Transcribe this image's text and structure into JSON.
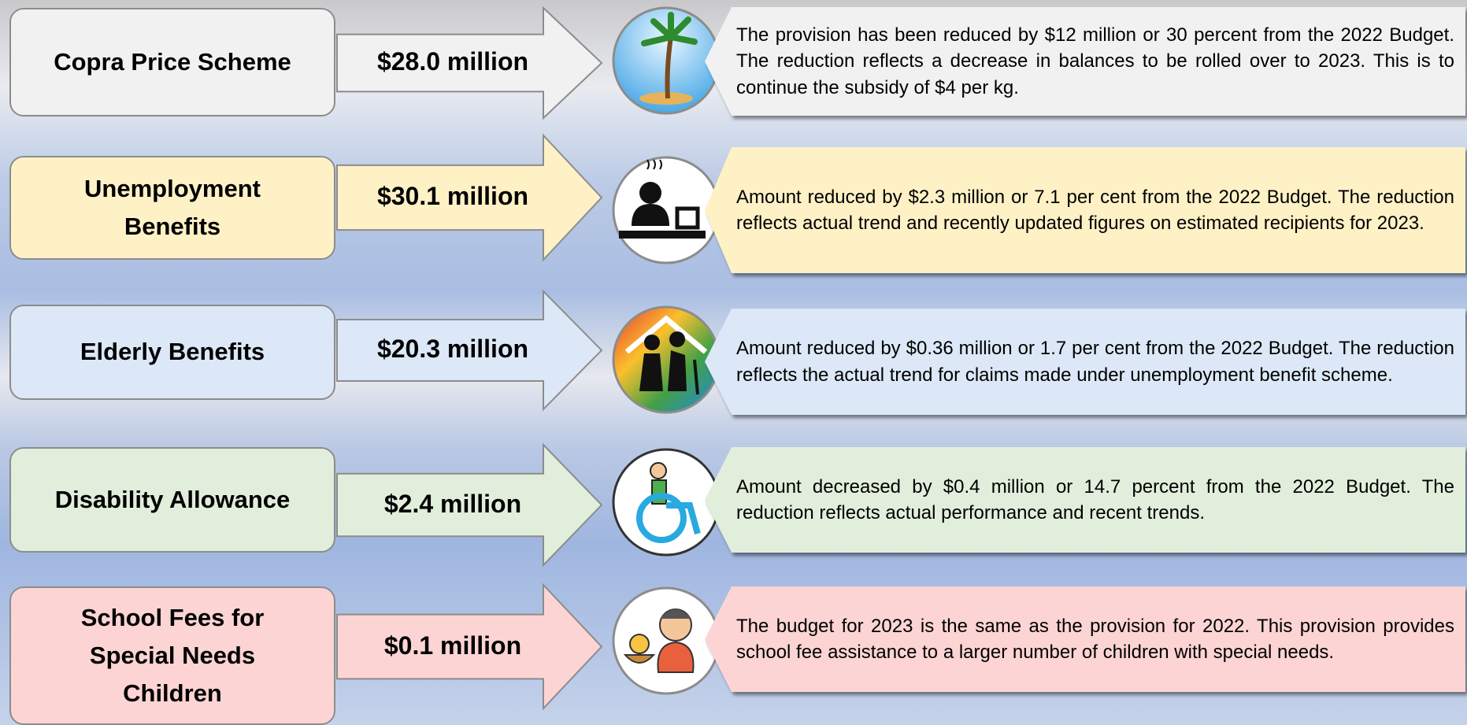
{
  "rows": [
    {
      "label": "Copra Price Scheme",
      "amount": "$28.0 million",
      "description": "The provision has been reduced by $12 million or 30 percent from the 2022 Budget. The reduction reflects a decrease in balances to be rolled over to 2023. This is to continue the subsidy of $4 per kg."
    },
    {
      "label": "Unemployment Benefits",
      "amount": "$30.1 million",
      "description": "Amount reduced by $2.3 million or 7.1 per cent from the 2022 Budget. The reduction reflects actual trend and recently updated figures on estimated recipients for 2023."
    },
    {
      "label": "Elderly Benefits",
      "amount": "$20.3 million",
      "description": "Amount reduced by $0.36 million or 1.7 per cent from the 2022 Budget. The reduction reflects the actual trend for claims made under unemployment benefit scheme."
    },
    {
      "label": "Disability Allowance",
      "amount": "$2.4 million",
      "description": "Amount decreased by $0.4 million or 14.7 percent from the 2022 Budget. The reduction reflects actual performance and recent trends."
    },
    {
      "label": "School Fees for Special Needs Children",
      "amount": "$0.1 million",
      "description": "The budget for 2023 is the same as the provision for 2022. This provision provides school fee assistance to a larger number of children with special needs."
    }
  ]
}
